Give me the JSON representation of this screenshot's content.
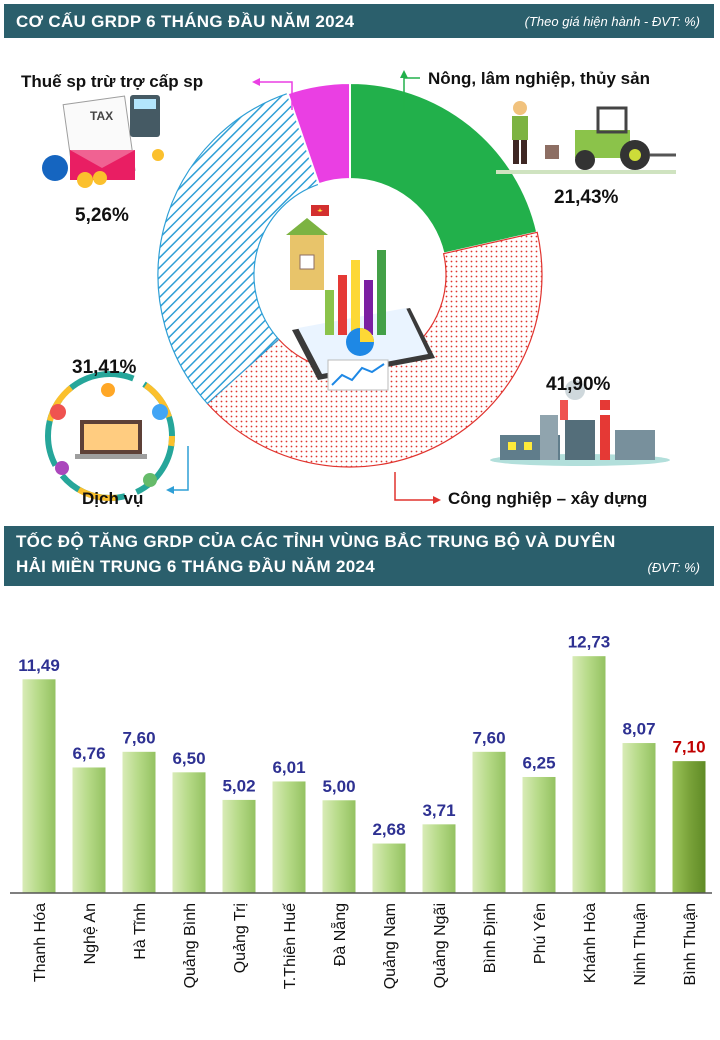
{
  "pie_section": {
    "title": "CƠ CẤU GRDP 6 THÁNG ĐẦU NĂM 2024",
    "unit_note": "(Theo giá hiện hành - ĐVT: %)"
  },
  "bar_section": {
    "title_line1": "TỐC ĐỘ TĂNG GRDP CỦA CÁC TỈNH VÙNG BẮC TRUNG BỘ VÀ DUYÊN",
    "title_line2": "HẢI MIỀN TRUNG 6 THÁNG ĐẦU NĂM 2024",
    "unit_note": "(ĐVT: %)"
  },
  "colors": {
    "header_bg": "#2b5f6c",
    "agriculture": "#22b04b",
    "industry": "#e0342f",
    "services": "#2f9fd6",
    "taxes": "#ea3fe3",
    "bar_value_text": "#2e3192",
    "highlight_value_text": "#c00000",
    "bar_fill": "#b5d986",
    "highlight_bar_fill": "#7aa33a"
  },
  "chart_data": [
    {
      "type": "pie",
      "title": "CƠ CẤU GRDP 6 THÁNG ĐẦU NĂM 2024",
      "style": "donut",
      "slices": [
        {
          "label": "Nông, lâm nghiệp, thủy sản",
          "value": 21.43,
          "value_text": "21,43%",
          "color": "#22b04b",
          "pattern": "solid",
          "icon": "farmer-tractor-icon"
        },
        {
          "label": "Công nghiệp – xây dựng",
          "value": 41.9,
          "value_text": "41,90%",
          "color": "#e0342f",
          "pattern": "dotted",
          "icon": "factory-icon"
        },
        {
          "label": "Dịch vụ",
          "value": 31.41,
          "value_text": "31,41%",
          "color": "#2f9fd6",
          "pattern": "diagonal-lines",
          "icon": "services-devices-icon"
        },
        {
          "label": "Thuế sp trừ trợ cấp sp",
          "value": 5.26,
          "value_text": "5,26%",
          "color": "#ea3fe3",
          "pattern": "solid",
          "icon": "tax-document-icon"
        }
      ],
      "center_icon": "statistics-tablet-icon"
    },
    {
      "type": "bar",
      "title": "TỐC ĐỘ TĂNG GRDP CỦA CÁC TỈNH VÙNG BẮC TRUNG BỘ VÀ DUYÊN HẢI MIỀN TRUNG 6 THÁNG ĐẦU NĂM 2024",
      "categories": [
        "Thanh Hóa",
        "Nghệ An",
        "Hà Tĩnh",
        "Quảng Bình",
        "Quảng Trị",
        "T.Thiên Huế",
        "Đà Nẵng",
        "Quảng Nam",
        "Quảng Ngãi",
        "Bình Định",
        "Phú Yên",
        "Khánh Hòa",
        "Ninh Thuận",
        "Bình Thuận"
      ],
      "values": [
        11.49,
        6.76,
        7.6,
        6.5,
        5.02,
        6.01,
        5.0,
        2.68,
        3.71,
        7.6,
        6.25,
        12.73,
        8.07,
        7.1
      ],
      "value_labels": [
        "11,49",
        "6,76",
        "7,60",
        "6,50",
        "5,02",
        "6,01",
        "5,00",
        "2,68",
        "3,71",
        "7,60",
        "6,25",
        "12,73",
        "8,07",
        "7,10"
      ],
      "highlight_category": "Bình Thuận",
      "ylim": [
        0,
        14
      ],
      "grid": false,
      "xlabel": "",
      "ylabel": ""
    }
  ]
}
